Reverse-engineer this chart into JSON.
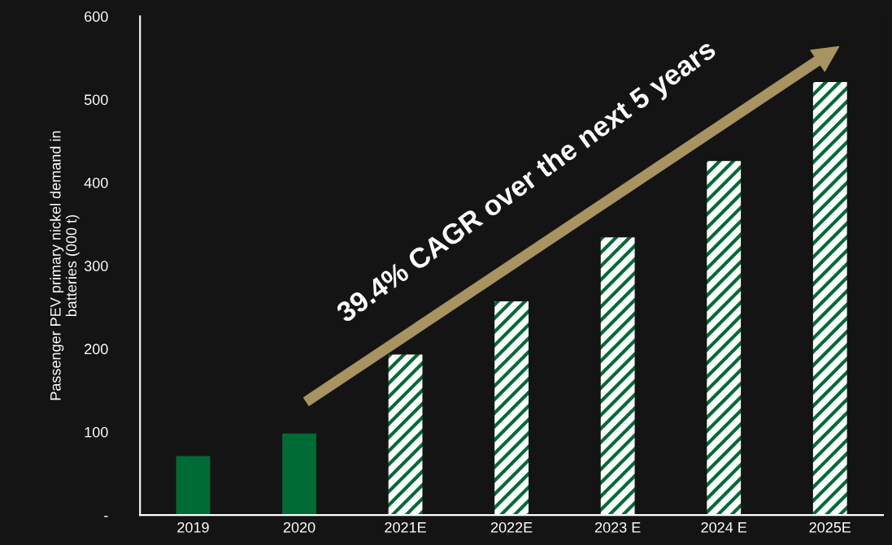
{
  "chart_data": {
    "type": "bar",
    "ylabel": "Passenger PEV primary nickel demand in\nbatteries (000 t)",
    "categories": [
      "2019",
      "2020",
      "2021E",
      "2022E",
      "2023 E",
      "2024 E",
      "2025E"
    ],
    "series": [
      {
        "color": "#006b35",
        "values": [
          71,
          98,
          null,
          null,
          null,
          null,
          null
        ]
      },
      {
        "color": "#006b35",
        "values": [
          null,
          null,
          193,
          257,
          334,
          426,
          521
        ]
      }
    ],
    "ylim": [
      0,
      600
    ],
    "yticks": [
      {
        "value": 0,
        "label": "-"
      },
      100,
      200,
      300,
      400,
      500,
      600
    ],
    "annotations": [
      "39.4% CAGR over the next 5 years"
    ],
    "grid": false,
    "legend": false
  }
}
